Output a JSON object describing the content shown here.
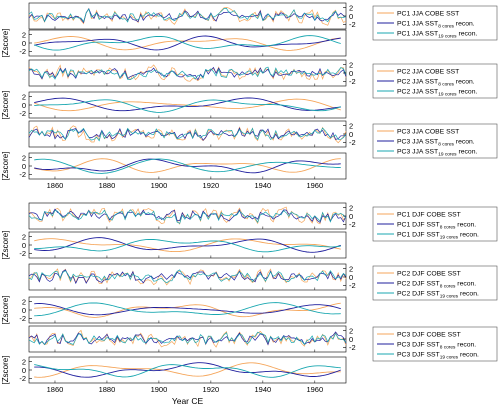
{
  "colors": {
    "cobe": "#f5a65b",
    "cores8": "#1f1f9e",
    "cores19": "#19a7b0",
    "axis": "#000000"
  },
  "chart_data": {
    "type": "line",
    "x_axis": {
      "label": "Year CE",
      "range": [
        1850,
        1972
      ],
      "ticks": [
        1860,
        1880,
        1900,
        1920,
        1940,
        1960
      ]
    },
    "y_axis": {
      "label": "[Zscore]",
      "ticks": [
        2,
        0,
        -2
      ]
    },
    "groups": [
      {
        "season": "JJA",
        "legends": [
          {
            "pc": "PC1",
            "entries": [
              {
                "series": "cobe",
                "text": "PC1 JJA COBE SST",
                "sub": "",
                "suffix": ""
              },
              {
                "series": "cores8",
                "text": "PC1 JJA SST",
                "sub": "8 cores",
                "suffix": " recon."
              },
              {
                "series": "cores19",
                "text": "PC1 JJA SST",
                "sub": "19 cores",
                "suffix": " recon."
              }
            ]
          },
          {
            "pc": "PC2",
            "entries": [
              {
                "series": "cobe",
                "text": "PC2 JJA COBE SST",
                "sub": "",
                "suffix": ""
              },
              {
                "series": "cores8",
                "text": "PC2 JJA SST",
                "sub": "8 cores",
                "suffix": " recon."
              },
              {
                "series": "cores19",
                "text": "PC2 JJA SST",
                "sub": "19 cores",
                "suffix": " recon."
              }
            ]
          },
          {
            "pc": "PC3",
            "entries": [
              {
                "series": "cobe",
                "text": "PC3 JJA COBE SST",
                "sub": "",
                "suffix": ""
              },
              {
                "series": "cores8",
                "text": "PC3 JJA SST",
                "sub": "8 cores",
                "suffix": " recon."
              },
              {
                "series": "cores19",
                "text": "PC3 JJA SST",
                "sub": "19 cores",
                "suffix": " recon."
              }
            ]
          }
        ]
      },
      {
        "season": "DJF",
        "legends": [
          {
            "pc": "PC1",
            "entries": [
              {
                "series": "cobe",
                "text": "PC1 DJF COBE SST",
                "sub": "",
                "suffix": ""
              },
              {
                "series": "cores8",
                "text": "PC1 DJF SST",
                "sub": "8 cores",
                "suffix": " recon."
              },
              {
                "series": "cores19",
                "text": "PC1 DJF SST",
                "sub": "19 cores",
                "suffix": " recon."
              }
            ]
          },
          {
            "pc": "PC2",
            "entries": [
              {
                "series": "cobe",
                "text": "PC2 DJF COBE SST",
                "sub": "",
                "suffix": ""
              },
              {
                "series": "cores8",
                "text": "PC2 DJF SST",
                "sub": "8 cores",
                "suffix": " recon."
              },
              {
                "series": "cores19",
                "text": "PC2 DJF SST",
                "sub": "19 cores",
                "suffix": " recon."
              }
            ]
          },
          {
            "pc": "PC3",
            "entries": [
              {
                "series": "cobe",
                "text": "PC3 DJF COBE SST",
                "sub": "",
                "suffix": ""
              },
              {
                "series": "cores8",
                "text": "PC3 DJF SST",
                "sub": "8 cores",
                "suffix": " recon."
              },
              {
                "series": "cores19",
                "text": "PC3 DJF SST",
                "sub": "19 cores",
                "suffix": " recon."
              }
            ]
          }
        ]
      }
    ],
    "panels": [
      {
        "group": 0,
        "pc": 1,
        "filter": "unfiltered",
        "y_axis_side": "right"
      },
      {
        "group": 0,
        "pc": 1,
        "filter": "smoothed",
        "y_axis_side": "left"
      },
      {
        "group": 0,
        "pc": 2,
        "filter": "unfiltered",
        "y_axis_side": "right"
      },
      {
        "group": 0,
        "pc": 2,
        "filter": "smoothed",
        "y_axis_side": "left"
      },
      {
        "group": 0,
        "pc": 3,
        "filter": "unfiltered",
        "y_axis_side": "right"
      },
      {
        "group": 0,
        "pc": 3,
        "filter": "smoothed",
        "y_axis_side": "left"
      },
      {
        "group": 1,
        "pc": 1,
        "filter": "unfiltered",
        "y_axis_side": "right"
      },
      {
        "group": 1,
        "pc": 1,
        "filter": "smoothed",
        "y_axis_side": "left"
      },
      {
        "group": 1,
        "pc": 2,
        "filter": "unfiltered",
        "y_axis_side": "right"
      },
      {
        "group": 1,
        "pc": 2,
        "filter": "smoothed",
        "y_axis_side": "left"
      },
      {
        "group": 1,
        "pc": 3,
        "filter": "unfiltered",
        "y_axis_side": "right"
      },
      {
        "group": 1,
        "pc": 3,
        "filter": "smoothed",
        "y_axis_side": "left"
      }
    ],
    "series": [
      {
        "key": "cobe",
        "values": []
      },
      {
        "key": "cores8",
        "values": []
      },
      {
        "key": "cores19",
        "values": []
      }
    ]
  }
}
